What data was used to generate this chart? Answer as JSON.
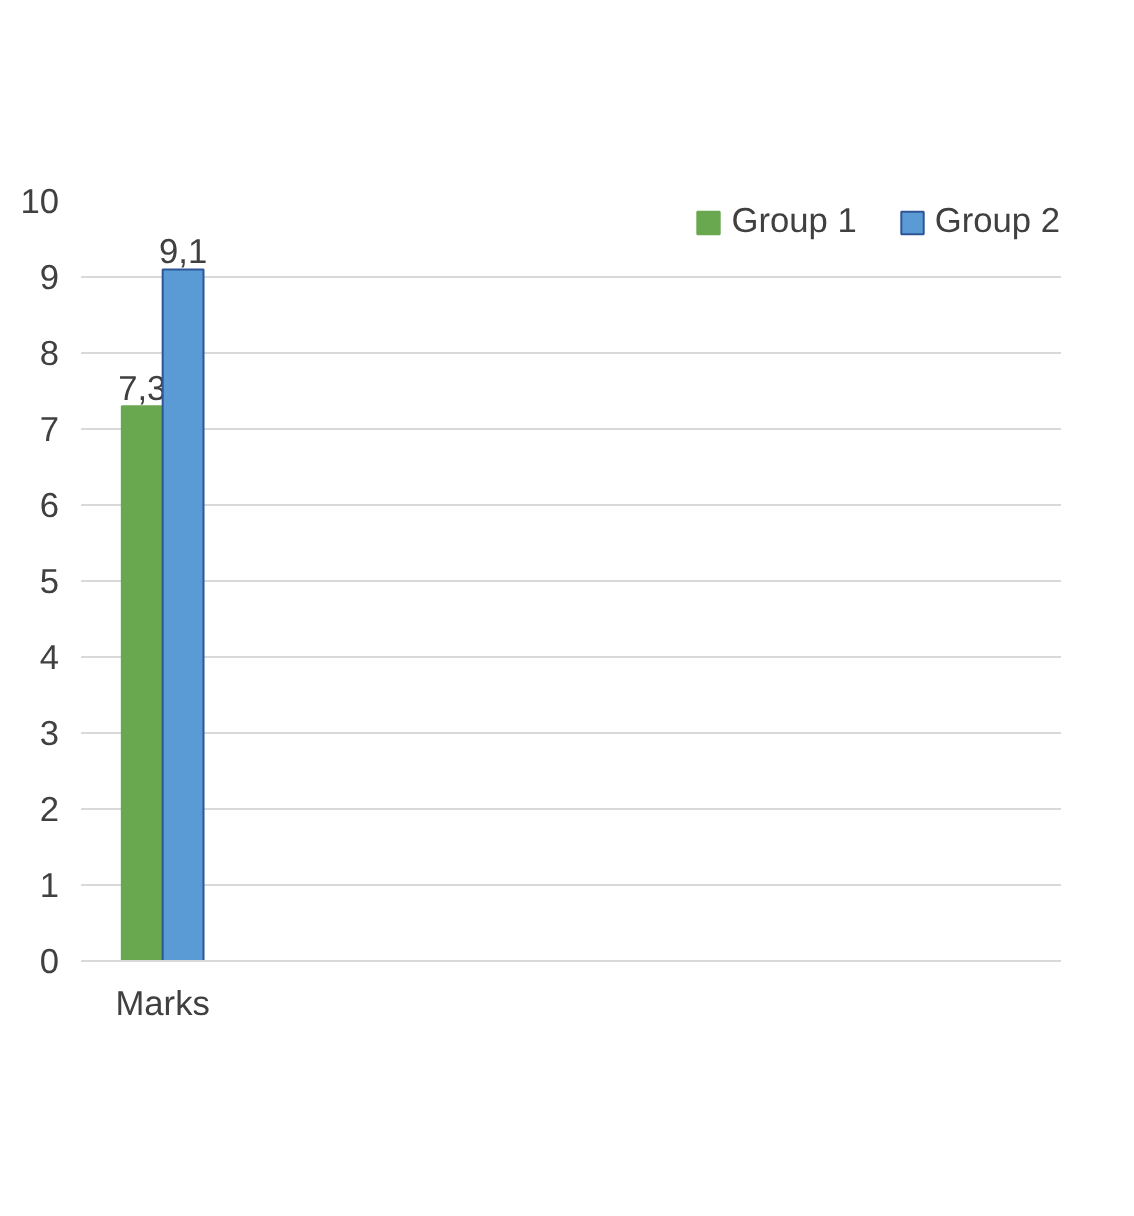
{
  "chart_data": {
    "type": "bar",
    "categories": [
      "Marks",
      null,
      null,
      null,
      null,
      null
    ],
    "series": [
      {
        "name": "Group 1",
        "color": "#6aa84f",
        "values": [
          7.3,
          null,
          null,
          null,
          null,
          null
        ],
        "value_labels": [
          "7,3",
          null,
          null,
          null,
          null,
          null
        ]
      },
      {
        "name": "Group 2",
        "color": "#5b9bd5",
        "values": [
          9.1,
          null,
          null,
          null,
          null,
          null
        ],
        "value_labels": [
          "9,1",
          null,
          null,
          null,
          null,
          null
        ]
      }
    ],
    "ylim": [
      0,
      10
    ],
    "yticks": [
      0,
      1,
      2,
      3,
      4,
      5,
      6,
      7,
      8,
      9,
      10
    ],
    "grid": "y",
    "legend": "top right"
  }
}
